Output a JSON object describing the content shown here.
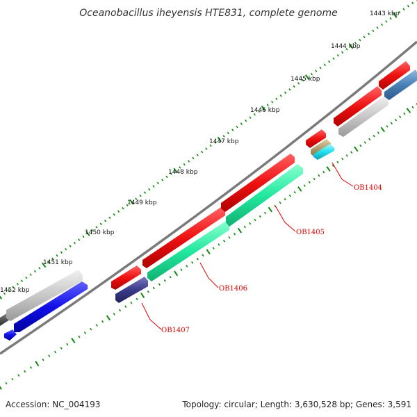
{
  "title": "Oceanobacillus iheyensis HTE831, complete genome",
  "ticks": [
    {
      "label": "1443 kbp"
    },
    {
      "label": "1444 kbp"
    },
    {
      "label": "1445 kbp"
    },
    {
      "label": "1446 kbp"
    },
    {
      "label": "1447 kbp"
    },
    {
      "label": "1448 kbp"
    },
    {
      "label": "1449 kbp"
    },
    {
      "label": "1450 kbp"
    },
    {
      "label": "1451 kbp"
    },
    {
      "label": "1452 kbp"
    }
  ],
  "gene_labels": [
    {
      "text": "OB1404"
    },
    {
      "text": "OB1405"
    },
    {
      "text": "OB1406"
    },
    {
      "text": "OB1407"
    }
  ],
  "footer": {
    "accession": "Accession: NC_004193",
    "summary": "Topology: circular; Length: 3,630,528 bp; Genes: 3,591"
  },
  "colors": {
    "backbone": "#7a7a7a",
    "tick": "#0a8a0a",
    "label_red": "#e00000",
    "feature_red": "#ee1111",
    "feature_green": "#22e8a0",
    "feature_gray": "#c8c8c8",
    "feature_blue": "#1010e8",
    "feature_navy": "#3a3a8a",
    "feature_steel": "#4a80b8",
    "feature_tan": "#b0a070",
    "feature_cyan": "#20e0f0",
    "feature_darkgray": "#5a5a5a"
  }
}
